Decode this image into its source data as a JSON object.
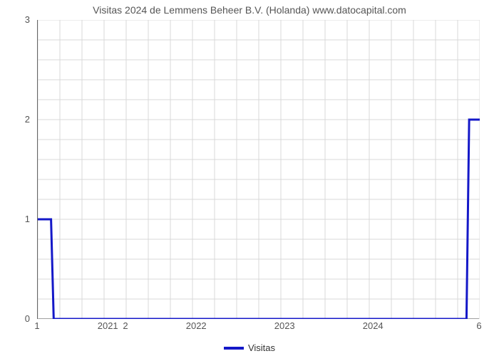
{
  "chart": {
    "type": "line",
    "title": "Visitas 2024 de Lemmens Beheer B.V. (Holanda) www.datocapital.com",
    "title_fontsize": 14,
    "title_color": "#555555",
    "background_color": "#ffffff",
    "grid_color": "#d9d9d9",
    "axis_color": "#666666",
    "tick_label_color": "#555555",
    "tick_fontsize": 13,
    "x": {
      "min": 1,
      "max": 6,
      "data_label_ticks": [
        1,
        2,
        6
      ],
      "year_ticks": [
        {
          "pos": 1.8,
          "label": "2021"
        },
        {
          "pos": 2.8,
          "label": "2022"
        },
        {
          "pos": 3.8,
          "label": "2023"
        },
        {
          "pos": 4.8,
          "label": "2024"
        }
      ],
      "minor_grid_count": 20
    },
    "y": {
      "min": 0,
      "max": 3,
      "ticks": [
        0,
        1,
        2,
        3
      ],
      "minor_grid_count": 15
    },
    "series": [
      {
        "name": "Visitas",
        "color": "#1418c8",
        "line_width": 3,
        "points": [
          {
            "x": 1,
            "y": 1
          },
          {
            "x": 1.15,
            "y": 1
          },
          {
            "x": 1.18,
            "y": 0
          },
          {
            "x": 5.85,
            "y": 0
          },
          {
            "x": 5.88,
            "y": 2
          },
          {
            "x": 6,
            "y": 2
          }
        ]
      }
    ],
    "legend": {
      "label": "Visitas",
      "swatch_color": "#1418c8"
    }
  }
}
